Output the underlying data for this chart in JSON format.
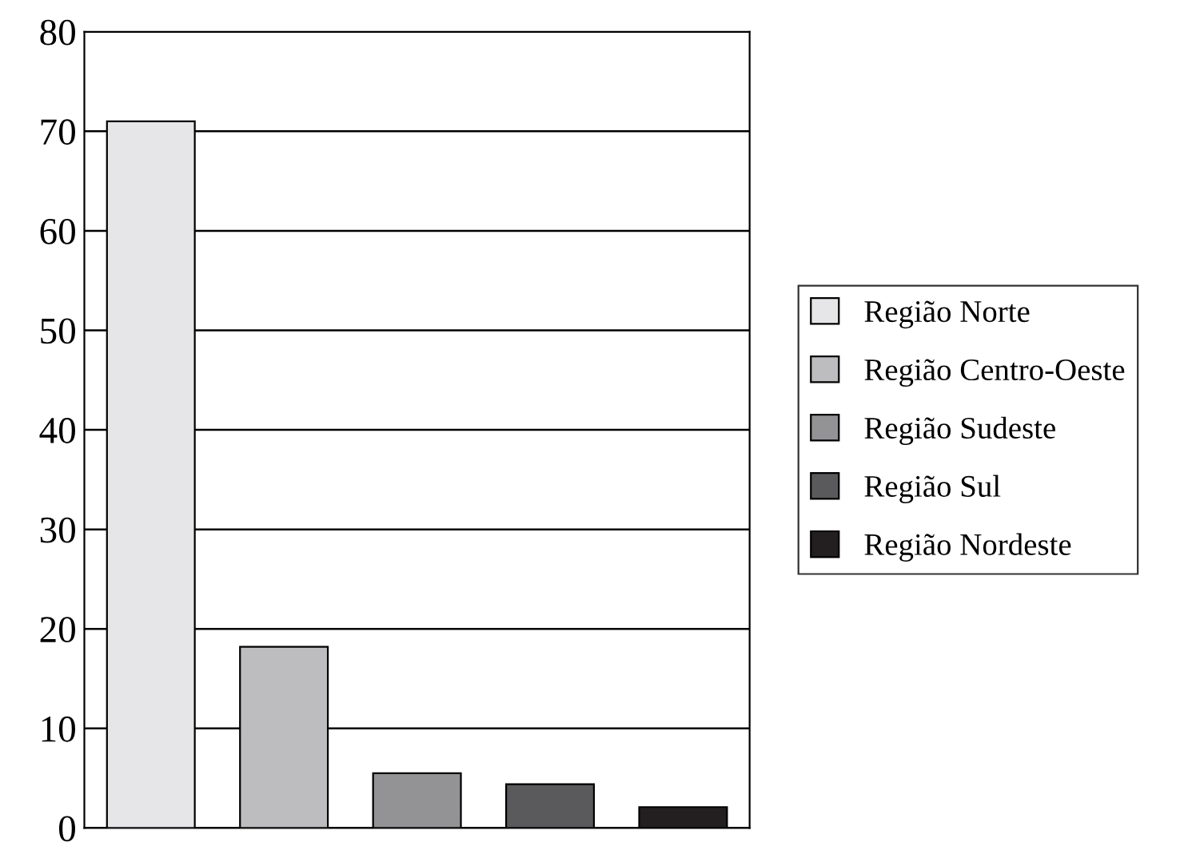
{
  "chart_data": {
    "type": "bar",
    "categories": [
      null,
      null,
      null,
      null,
      null
    ],
    "series": [
      {
        "name": "Região Norte",
        "color": "#e6e6e8",
        "values": [
          71,
          null,
          null,
          null,
          null
        ]
      },
      {
        "name": "Região Centro-Oeste",
        "color": "#bdbdc0",
        "values": [
          null,
          18.2,
          null,
          null,
          null
        ]
      },
      {
        "name": "Região Sudeste",
        "color": "#939396",
        "values": [
          null,
          null,
          5.5,
          null,
          null
        ]
      },
      {
        "name": "Região Sul",
        "color": "#5a5a5c",
        "values": [
          null,
          null,
          null,
          4.4,
          null
        ]
      },
      {
        "name": "Região Nordeste",
        "color": "#231f20",
        "values": [
          null,
          null,
          null,
          null,
          2.1
        ]
      }
    ],
    "ylim": [
      0,
      80
    ],
    "yticks": [
      0,
      10,
      20,
      30,
      40,
      50,
      60,
      70,
      80
    ],
    "grid": "y",
    "legend": "right",
    "tick_labels": "y"
  }
}
